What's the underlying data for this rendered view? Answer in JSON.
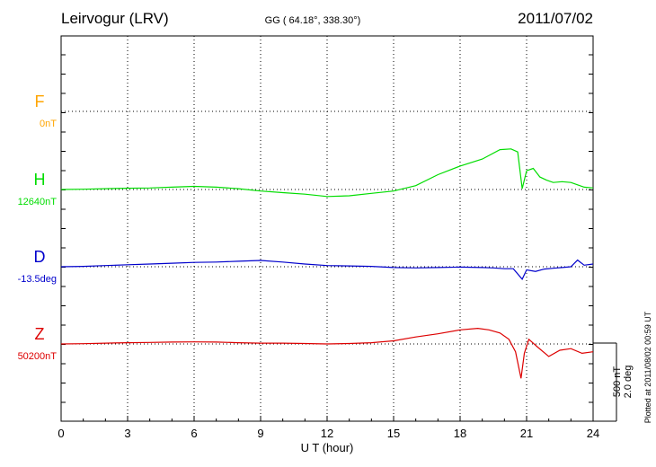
{
  "header": {
    "station": "Leirvogur (LRV)",
    "coords": "GG ( 64.18°, 338.30°)",
    "date": "2011/07/02"
  },
  "footer": {
    "plotted": "Plotted at 2011/08/02 00:59 UT",
    "scale_nt": "500 nT",
    "scale_deg": "2.0 deg"
  },
  "chart_data": {
    "type": "line",
    "xlabel": "U T (hour)",
    "xlim": [
      0,
      24
    ],
    "xticks": [
      "0",
      "3",
      "6",
      "9",
      "12",
      "15",
      "18",
      "21",
      "24"
    ],
    "grid": true,
    "scale_bar": {
      "nT": 500,
      "deg": 2.0
    },
    "series": [
      {
        "name": "F",
        "baseline_label": "0nT",
        "color": "#ffa500",
        "x": [],
        "y": []
      },
      {
        "name": "H",
        "baseline_label": "12640nT",
        "color": "#00dd00",
        "x": [
          0,
          1,
          2,
          3,
          4,
          5,
          6,
          7,
          8,
          9,
          10,
          11,
          12,
          13,
          14,
          15,
          16,
          17,
          18,
          19,
          19.8,
          20.3,
          20.6,
          20.8,
          21,
          21.3,
          21.6,
          21.9,
          22.2,
          22.6,
          23,
          23.3,
          23.6,
          24
        ],
        "y": [
          12640,
          12642,
          12645,
          12648,
          12650,
          12655,
          12660,
          12655,
          12645,
          12630,
          12620,
          12610,
          12595,
          12600,
          12615,
          12630,
          12665,
          12735,
          12790,
          12835,
          12895,
          12900,
          12880,
          12645,
          12760,
          12775,
          12720,
          12700,
          12685,
          12690,
          12685,
          12670,
          12655,
          12650
        ]
      },
      {
        "name": "D",
        "baseline_label": "-13.5deg",
        "color": "#0000cc",
        "x": [
          0,
          1,
          2,
          3,
          4,
          5,
          6,
          7,
          8,
          9,
          10,
          11,
          12,
          13,
          14,
          15,
          16,
          17,
          18,
          19,
          19.5,
          20,
          20.4,
          20.8,
          21,
          21.4,
          21.8,
          22.2,
          22.6,
          23,
          23.3,
          23.6,
          24
        ],
        "y": [
          -13.5,
          -13.49,
          -13.47,
          -13.45,
          -13.43,
          -13.41,
          -13.39,
          -13.38,
          -13.36,
          -13.34,
          -13.38,
          -13.43,
          -13.47,
          -13.48,
          -13.49,
          -13.52,
          -13.53,
          -13.52,
          -13.51,
          -13.52,
          -13.53,
          -13.55,
          -13.55,
          -13.82,
          -13.58,
          -13.62,
          -13.56,
          -13.54,
          -13.52,
          -13.5,
          -13.33,
          -13.46,
          -13.43
        ]
      },
      {
        "name": "Z",
        "baseline_label": "50200nT",
        "color": "#dd0000",
        "x": [
          0,
          1,
          2,
          3,
          4,
          5,
          6,
          7,
          8,
          9,
          10,
          11,
          12,
          13,
          14,
          15,
          16,
          17,
          18,
          18.8,
          19.3,
          19.8,
          20.2,
          20.5,
          20.75,
          20.9,
          21.1,
          21.5,
          22,
          22.5,
          23,
          23.5,
          24
        ],
        "y": [
          50200,
          50202,
          50205,
          50208,
          50210,
          50212,
          50213,
          50212,
          50208,
          50205,
          50205,
          50203,
          50200,
          50203,
          50208,
          50220,
          50245,
          50265,
          50290,
          50300,
          50290,
          50270,
          50230,
          50150,
          49980,
          50140,
          50230,
          50180,
          50120,
          50160,
          50170,
          50140,
          50150
        ]
      }
    ]
  }
}
